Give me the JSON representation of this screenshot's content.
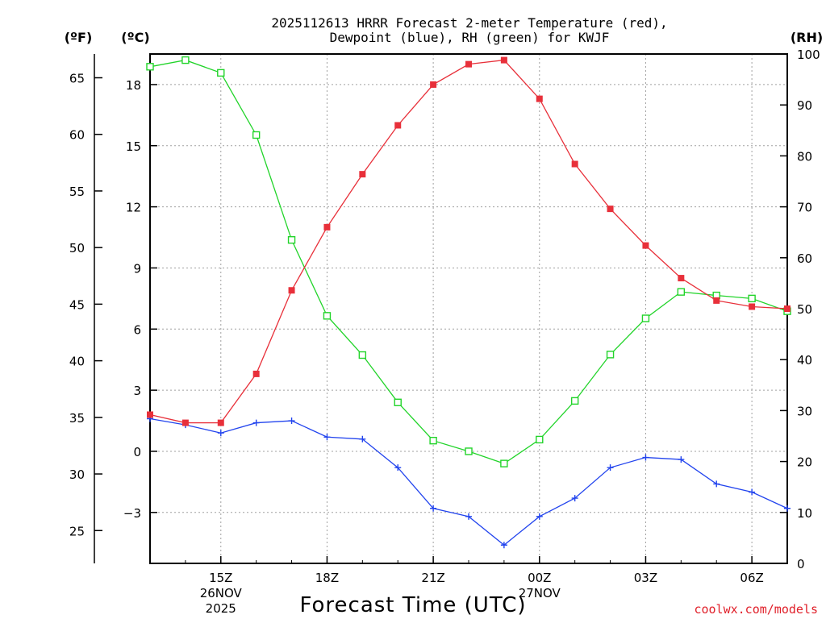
{
  "chart_data": {
    "type": "line",
    "title": [
      "2025112613 HRRR Forecast 2-meter Temperature (red),",
      "Dewpoint (blue), RH (green) for KWJF"
    ],
    "xlabel": "Forecast Time (UTC)",
    "credit": "coolwx.com/models",
    "x": [
      13,
      14,
      15,
      16,
      17,
      18,
      19,
      20,
      21,
      22,
      23,
      24,
      25,
      26,
      27,
      28,
      29,
      30,
      31
    ],
    "xlim": [
      13,
      31
    ],
    "x_ticks": [
      {
        "x": 15,
        "lines": [
          "15Z",
          "26NOV",
          "2025"
        ]
      },
      {
        "x": 18,
        "lines": [
          "18Z"
        ]
      },
      {
        "x": 21,
        "lines": [
          "21Z"
        ]
      },
      {
        "x": 24,
        "lines": [
          "00Z",
          "27NOV"
        ]
      },
      {
        "x": 27,
        "lines": [
          "03Z"
        ]
      },
      {
        "x": 30,
        "lines": [
          "06Z"
        ]
      }
    ],
    "celsius_axis": {
      "label": "(ºC)",
      "ylim": [
        -5.5,
        19.5
      ],
      "ticks": [
        -3,
        0,
        3,
        6,
        9,
        12,
        15,
        18
      ]
    },
    "fahrenheit_axis": {
      "label": "(ºF)",
      "ticks": [
        25,
        30,
        35,
        40,
        45,
        50,
        55,
        60,
        65
      ]
    },
    "rh_axis": {
      "label": "(RH)",
      "ylim": [
        0,
        100
      ],
      "ticks": [
        0,
        10,
        20,
        30,
        40,
        50,
        60,
        70,
        80,
        90,
        100
      ]
    },
    "series": [
      {
        "name": "Temperature",
        "axis": "celsius",
        "color": "#e8303a",
        "marker": "filled-square",
        "values": [
          1.8,
          1.4,
          1.4,
          3.8,
          7.9,
          11.0,
          13.6,
          16.0,
          18.0,
          19.0,
          19.2,
          17.3,
          14.1,
          11.9,
          10.1,
          8.5,
          7.4,
          7.1,
          7.0
        ]
      },
      {
        "name": "Dewpoint",
        "axis": "celsius",
        "color": "#2244ee",
        "marker": "plus",
        "values": [
          1.6,
          1.3,
          0.9,
          1.4,
          1.5,
          0.7,
          0.6,
          -0.8,
          -2.8,
          -3.2,
          -4.6,
          -3.2,
          -2.3,
          -0.8,
          -0.3,
          -0.4,
          -1.6,
          -2.0,
          -2.8
        ]
      },
      {
        "name": "RH",
        "axis": "rh",
        "color": "#22d42a",
        "marker": "open-square",
        "values": [
          97.5,
          98.8,
          96.3,
          84.1,
          63.5,
          48.6,
          40.9,
          31.6,
          24.1,
          22.0,
          19.6,
          24.3,
          31.9,
          41.0,
          48.1,
          53.3,
          52.6,
          52.0,
          49.5
        ]
      }
    ]
  }
}
